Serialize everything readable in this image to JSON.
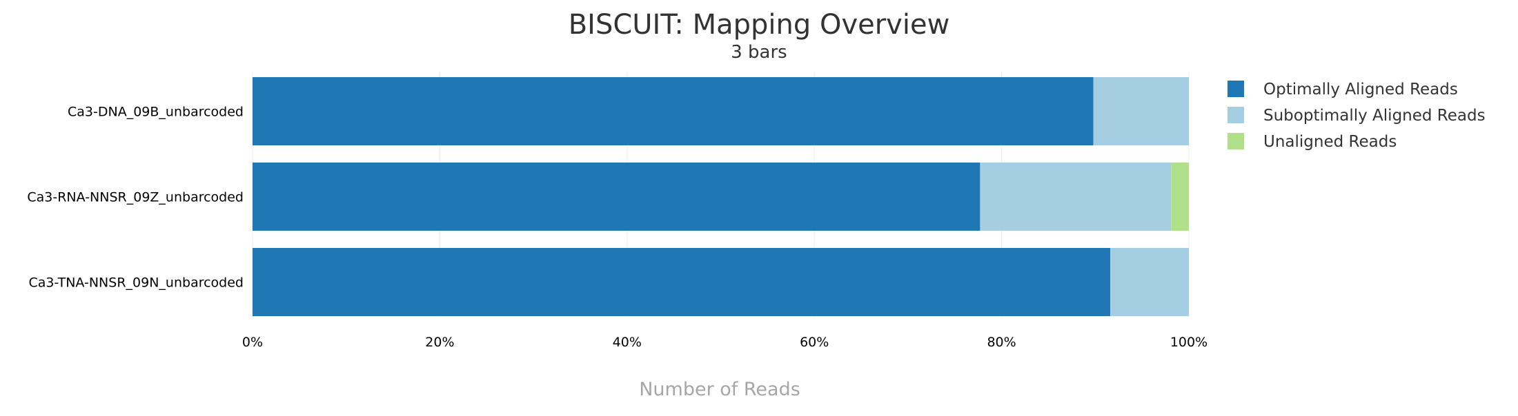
{
  "chart_data": {
    "type": "bar",
    "orientation": "horizontal",
    "stacked": true,
    "normalized": true,
    "title": "BISCUIT: Mapping Overview",
    "subtitle": "3 bars",
    "xlabel": "Number of Reads",
    "ylabel": "",
    "xlim": [
      0,
      100
    ],
    "x_ticks": [
      "0%",
      "20%",
      "40%",
      "60%",
      "80%",
      "100%"
    ],
    "grid": true,
    "legend_position": "right",
    "categories": [
      "Ca3-DNA_09B_unbarcoded",
      "Ca3-RNA-NNSR_09Z_unbarcoded",
      "Ca3-TNA-NNSR_09N_unbarcoded"
    ],
    "series": [
      {
        "name": "Optimally Aligned Reads",
        "color": "#1f78b4",
        "values": [
          89.8,
          77.7,
          91.6
        ]
      },
      {
        "name": "Suboptimally Aligned Reads",
        "color": "#a6cee3",
        "values": [
          10.2,
          20.4,
          8.4
        ]
      },
      {
        "name": "Unaligned Reads",
        "color": "#b2df8a",
        "values": [
          0.0,
          1.9,
          0.0
        ]
      }
    ]
  }
}
